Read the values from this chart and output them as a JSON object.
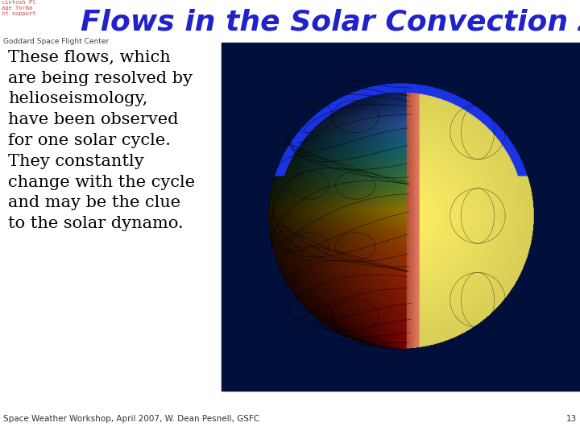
{
  "title": "Flows in the Solar Convection Zone",
  "title_color": "#2222cc",
  "title_fontsize": 26,
  "subtitle": "Goddard Space Flight Center",
  "subtitle_color": "#444444",
  "subtitle_fontsize": 6.5,
  "body_text": "These flows, which\nare being resolved by\nhelioseismology,\nhave been observed\nfor one solar cycle.\nThey constantly\nchange with the cycle\nand may be the clue\nto the solar dynamo.",
  "body_fontsize": 15,
  "body_color": "#000000",
  "footer_text": "Space Weather Workshop, April 2007, W. Dean Pesnell, GSFC",
  "footer_number": "13",
  "footer_fontsize": 7.5,
  "footer_color": "#333333",
  "bg_color": "#ffffff",
  "dark_panel_color": "#00103a",
  "top_bar_left_text_color": "#cc4444",
  "top_bar_left_text": "cintosh Pl\nage forma\not support"
}
